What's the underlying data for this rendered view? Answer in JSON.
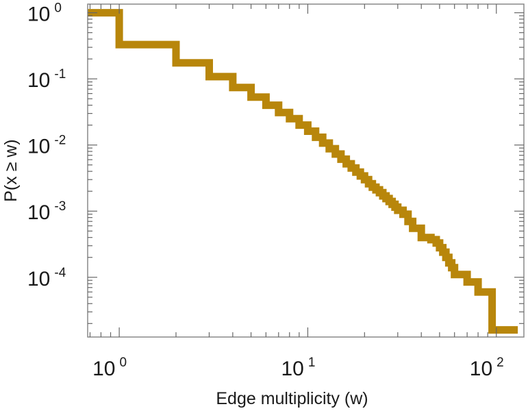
{
  "chart_data": {
    "type": "line",
    "title": "",
    "xlabel": "Edge multiplicity (w)",
    "ylabel": "P(x ≥ w)",
    "x_scale": "log",
    "y_scale": "log",
    "xlim": [
      0.68,
      140
    ],
    "ylim": [
      1.25e-05,
      1.35
    ],
    "grid": false,
    "legend": "none",
    "step": true,
    "line_color": "#b8860b",
    "x_ticks": [
      {
        "value": 1,
        "base": "10",
        "exp": "0"
      },
      {
        "value": 10,
        "base": "10",
        "exp": "1"
      },
      {
        "value": 100,
        "base": "10",
        "exp": "2"
      }
    ],
    "y_ticks": [
      {
        "value": 1,
        "base": "10",
        "exp": "0"
      },
      {
        "value": 0.1,
        "base": "10",
        "exp": "-1"
      },
      {
        "value": 0.01,
        "base": "10",
        "exp": "-2"
      },
      {
        "value": 0.001,
        "base": "10",
        "exp": "-3"
      },
      {
        "value": 0.0001,
        "base": "10",
        "exp": "-4"
      }
    ],
    "series": [
      {
        "x": [
          0.68,
          1,
          2,
          3,
          4,
          5,
          6,
          7,
          8,
          9,
          10,
          11,
          12,
          13,
          14,
          15,
          16,
          17,
          18,
          19,
          20,
          21,
          22,
          23,
          24,
          25,
          26,
          27,
          28,
          29,
          30,
          32,
          34,
          36,
          40,
          45,
          48,
          50,
          52,
          54,
          56,
          58,
          60,
          70,
          80,
          95,
          130
        ],
        "y": [
          1,
          0.33,
          0.175,
          0.108,
          0.074,
          0.053,
          0.04,
          0.031,
          0.025,
          0.02,
          0.0162,
          0.0131,
          0.0107,
          0.0088,
          0.0073,
          0.0061,
          0.0052,
          0.0045,
          0.0039,
          0.0034,
          0.003,
          0.0026,
          0.0023,
          0.0021,
          0.0019,
          0.0017,
          0.00155,
          0.0014,
          0.00127,
          0.00115,
          0.00103,
          0.0009,
          0.0007,
          0.00055,
          0.0004,
          0.00037,
          0.00033,
          0.00028,
          0.00024,
          0.0002,
          0.000165,
          0.00014,
          0.00011,
          8.5e-05,
          6e-05,
          1.6e-05,
          1.6e-05
        ]
      }
    ]
  }
}
